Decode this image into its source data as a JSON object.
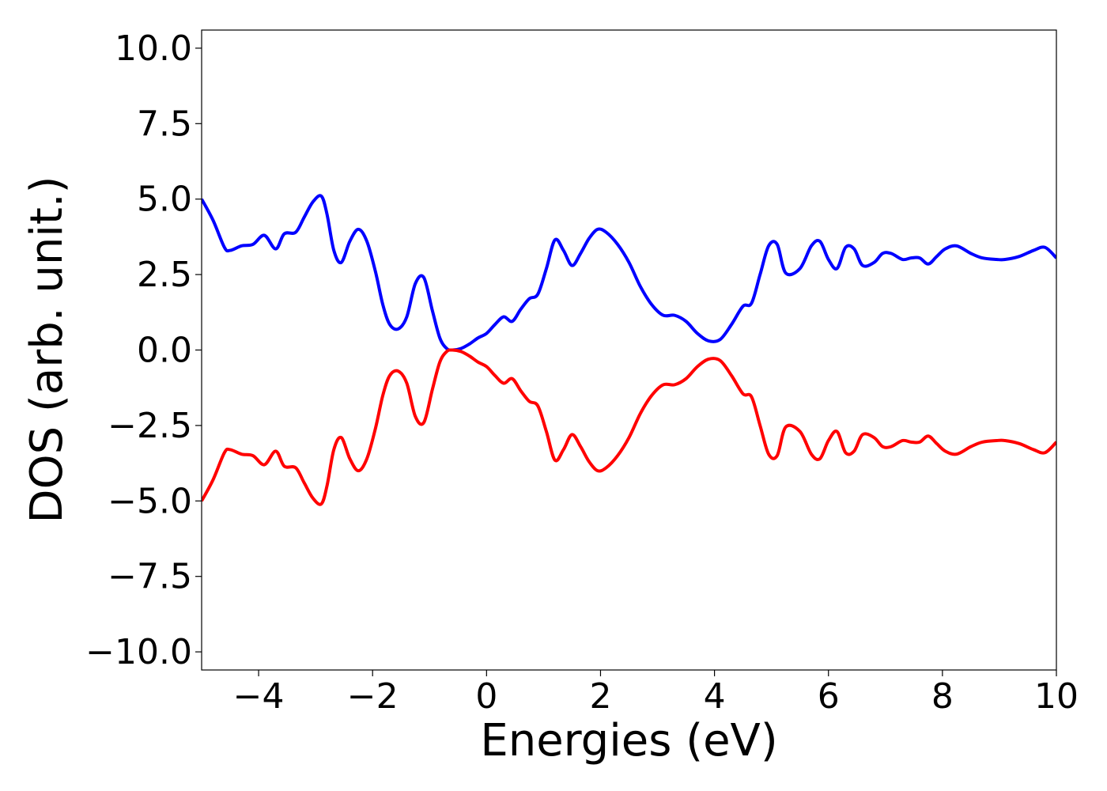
{
  "chart_data": {
    "type": "line",
    "title": "",
    "xlabel": "Energies (eV)",
    "ylabel": "DOS (arb. unit.)",
    "xlim": [
      -5,
      10
    ],
    "ylim": [
      -10.6,
      10.6
    ],
    "xticks": [
      -4,
      -2,
      0,
      2,
      4,
      6,
      8,
      10
    ],
    "xtick_labels": [
      "−4",
      "−2",
      "0",
      "2",
      "4",
      "6",
      "8",
      "10"
    ],
    "yticks": [
      10.0,
      7.5,
      5.0,
      2.5,
      0.0,
      -2.5,
      -5.0,
      -7.5,
      -10.0
    ],
    "ytick_labels": [
      "10.0",
      "7.5",
      "5.0",
      "2.5",
      "0.0",
      "−2.5",
      "−5.0",
      "−7.5",
      "−10.0"
    ],
    "grid": false,
    "legend": "none",
    "series": [
      {
        "color": "#0000ff",
        "x": [
          -5.0,
          -4.8,
          -4.6,
          -4.5,
          -4.3,
          -4.1,
          -3.9,
          -3.7,
          -3.55,
          -3.35,
          -3.2,
          -3.05,
          -2.9,
          -2.8,
          -2.68,
          -2.55,
          -2.4,
          -2.25,
          -2.1,
          -1.95,
          -1.82,
          -1.7,
          -1.55,
          -1.4,
          -1.25,
          -1.1,
          -0.95,
          -0.82,
          -0.7,
          -0.6,
          -0.45,
          -0.3,
          -0.15,
          0.0,
          0.15,
          0.3,
          0.45,
          0.6,
          0.75,
          0.9,
          1.05,
          1.2,
          1.35,
          1.5,
          1.65,
          1.8,
          1.95,
          2.1,
          2.3,
          2.5,
          2.7,
          2.9,
          3.1,
          3.3,
          3.5,
          3.7,
          3.9,
          4.1,
          4.3,
          4.5,
          4.65,
          4.8,
          4.95,
          5.1,
          5.25,
          5.5,
          5.7,
          5.85,
          6.0,
          6.15,
          6.3,
          6.45,
          6.6,
          6.8,
          6.95,
          7.1,
          7.3,
          7.45,
          7.6,
          7.75,
          7.9,
          8.05,
          8.25,
          8.5,
          8.7,
          8.95,
          9.1,
          9.35,
          9.6,
          9.8,
          10.0
        ],
        "y": [
          5.0,
          4.3,
          3.4,
          3.3,
          3.45,
          3.5,
          3.8,
          3.35,
          3.85,
          3.9,
          4.4,
          4.9,
          5.1,
          4.5,
          3.3,
          2.9,
          3.6,
          4.0,
          3.6,
          2.6,
          1.5,
          0.85,
          0.7,
          1.1,
          2.2,
          2.4,
          1.3,
          0.4,
          0.05,
          0.0,
          0.05,
          0.2,
          0.4,
          0.55,
          0.85,
          1.1,
          0.95,
          1.35,
          1.7,
          1.85,
          2.7,
          3.65,
          3.3,
          2.8,
          3.2,
          3.7,
          4.0,
          3.9,
          3.5,
          2.9,
          2.1,
          1.5,
          1.15,
          1.15,
          0.95,
          0.55,
          0.3,
          0.35,
          0.85,
          1.45,
          1.55,
          2.5,
          3.45,
          3.5,
          2.55,
          2.7,
          3.45,
          3.6,
          3.0,
          2.7,
          3.4,
          3.35,
          2.8,
          2.9,
          3.2,
          3.2,
          3.0,
          3.05,
          3.05,
          2.85,
          3.1,
          3.35,
          3.45,
          3.2,
          3.05,
          3.0,
          3.0,
          3.1,
          3.3,
          3.4,
          3.05
        ]
      },
      {
        "color": "#ff0000",
        "x": [
          -5.0,
          -4.8,
          -4.6,
          -4.5,
          -4.3,
          -4.1,
          -3.9,
          -3.7,
          -3.55,
          -3.35,
          -3.2,
          -3.05,
          -2.9,
          -2.8,
          -2.68,
          -2.55,
          -2.4,
          -2.25,
          -2.1,
          -1.95,
          -1.82,
          -1.7,
          -1.55,
          -1.4,
          -1.25,
          -1.1,
          -0.95,
          -0.82,
          -0.7,
          -0.6,
          -0.45,
          -0.3,
          -0.15,
          0.0,
          0.15,
          0.3,
          0.45,
          0.6,
          0.75,
          0.9,
          1.05,
          1.2,
          1.35,
          1.5,
          1.65,
          1.8,
          1.95,
          2.1,
          2.3,
          2.5,
          2.7,
          2.9,
          3.1,
          3.3,
          3.5,
          3.7,
          3.9,
          4.1,
          4.3,
          4.5,
          4.65,
          4.8,
          4.95,
          5.1,
          5.25,
          5.5,
          5.7,
          5.85,
          6.0,
          6.15,
          6.3,
          6.45,
          6.6,
          6.8,
          6.95,
          7.1,
          7.3,
          7.45,
          7.6,
          7.75,
          7.9,
          8.05,
          8.25,
          8.5,
          8.7,
          8.95,
          9.1,
          9.35,
          9.6,
          9.8,
          10.0
        ],
        "y": [
          -5.0,
          -4.3,
          -3.4,
          -3.3,
          -3.45,
          -3.5,
          -3.8,
          -3.35,
          -3.85,
          -3.9,
          -4.4,
          -4.9,
          -5.1,
          -4.5,
          -3.3,
          -2.9,
          -3.6,
          -4.0,
          -3.6,
          -2.6,
          -1.5,
          -0.85,
          -0.7,
          -1.1,
          -2.2,
          -2.4,
          -1.3,
          -0.4,
          -0.05,
          0.0,
          -0.05,
          -0.2,
          -0.4,
          -0.55,
          -0.85,
          -1.1,
          -0.95,
          -1.35,
          -1.7,
          -1.85,
          -2.7,
          -3.65,
          -3.3,
          -2.8,
          -3.2,
          -3.7,
          -4.0,
          -3.9,
          -3.5,
          -2.9,
          -2.1,
          -1.5,
          -1.15,
          -1.15,
          -0.95,
          -0.55,
          -0.3,
          -0.35,
          -0.85,
          -1.45,
          -1.55,
          -2.5,
          -3.45,
          -3.5,
          -2.55,
          -2.7,
          -3.45,
          -3.6,
          -3.0,
          -2.7,
          -3.4,
          -3.35,
          -2.8,
          -2.9,
          -3.2,
          -3.2,
          -3.0,
          -3.05,
          -3.05,
          -2.85,
          -3.1,
          -3.35,
          -3.45,
          -3.2,
          -3.05,
          -3.0,
          -3.0,
          -3.1,
          -3.3,
          -3.4,
          -3.05
        ]
      }
    ]
  }
}
